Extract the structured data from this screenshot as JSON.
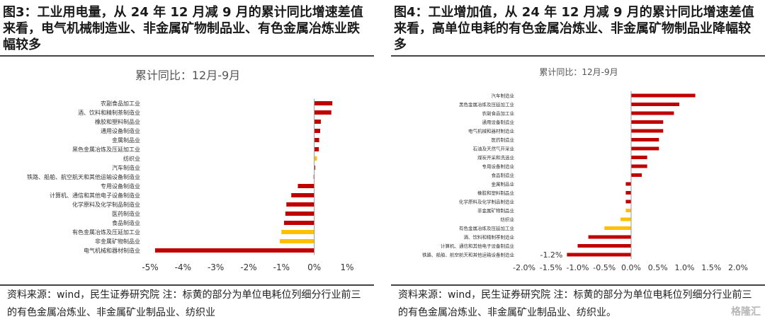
{
  "panels": [
    {
      "title": "图3：工业用电量，从 24 年 12 月减 9 月的累计同比增速差值来看，电气机械制造业、非金属矿物制品业、有色金属冶炼业跌幅较多",
      "source": "资料来源：wind，民生证券研究院 注：标黄的部分为单位电耗位列细分行业前三的有色金属冶炼业、非金属矿业制品业、纺织业"
    },
    {
      "title": "图4：工业增加值，从 24 年 12 月减 9 月的累计同比增速差值来看，高单位电耗的有色金属冶炼业、非金属矿物制品业降幅较多",
      "source": "资料来源：wind，民生证券研究院 注：标黄的部分为单位电耗位列细分行业前三的有色金属冶炼业、非金属矿业制品业、纺织业。"
    }
  ],
  "colors": {
    "red": "#c00000",
    "yellow": "#ffc000",
    "axis": "#999999"
  },
  "chart_data": [
    {
      "type": "bar",
      "orientation": "horizontal",
      "title": "累计同比：12月-9月",
      "categories": [
        "农副食品加工业",
        "酒、饮料和精制茶制造业",
        "橡胶和塑料制品业",
        "通用设备制造业",
        "金属制品业",
        "黑色金属冶炼及压延加工业",
        "纺织业",
        "汽车制造业",
        "铁路、船舶、航空航天和其他运输设备制造业",
        "专用设备制造业",
        "计算机、通信和其他电子设备制造业",
        "化学原料及化学制品制造业",
        "医药制造业",
        "食品制造业",
        "有色金属冶炼及压延加工业",
        "非金属矿物制品业",
        "电气机械和器材制造业"
      ],
      "values": [
        0.55,
        0.52,
        0.2,
        0.18,
        0.15,
        0.14,
        0.08,
        0.03,
        -0.02,
        -0.5,
        -0.7,
        -0.85,
        -0.88,
        -0.92,
        -1.0,
        -1.05,
        -4.85
      ],
      "highlight": [
        "纺织业",
        "有色金属冶炼及压延加工业",
        "非金属矿物制品业"
      ],
      "xlim": [
        -5,
        1
      ],
      "xticks": [
        "-5%",
        "-4%",
        "-3%",
        "-2%",
        "-1%",
        "0%",
        "1%"
      ],
      "data_labels": []
    },
    {
      "type": "bar",
      "orientation": "horizontal",
      "title": "累计同比：12月-9月",
      "categories": [
        "汽车制造业",
        "黑色金属冶炼及压延加工业",
        "农副食品加工业",
        "通用设备制造业",
        "电气机械和器材制造业",
        "医药制造业",
        "石油及天然气开采业",
        "煤炭开采和洗选业",
        "专用设备制造业",
        "食品制造业",
        "金属制品业",
        "橡胶和塑料制品业",
        "化学原料及化学制品制造业",
        "非金属矿物制品业",
        "纺织业",
        "有色金属冶炼及压延加工业",
        "酒、饮料和精制茶制造业",
        "计算机、通信和其他电子设备制造业",
        "铁路、船舶、航空航天和其他运输设备制造业"
      ],
      "values": [
        1.2,
        0.9,
        0.8,
        0.6,
        0.6,
        0.52,
        0.52,
        0.3,
        0.3,
        0.2,
        -0.1,
        -0.1,
        -0.1,
        -0.1,
        -0.2,
        -0.5,
        -0.8,
        -1.0,
        -1.2
      ],
      "highlight": [
        "非金属矿物制品业",
        "纺织业",
        "有色金属冶炼及压延加工业"
      ],
      "xlim": [
        -2,
        2
      ],
      "xticks": [
        "-2.0%",
        "-1.5%",
        "-1.0%",
        "-0.5%",
        "0.0%",
        "0.5%",
        "1.0%",
        "1.5%",
        "2.0%"
      ],
      "data_labels": [
        {
          "category": "铁路、船舶、航空航天和其他运输设备制造业",
          "text": "-1.2%"
        }
      ]
    }
  ],
  "watermark": "格隆汇"
}
